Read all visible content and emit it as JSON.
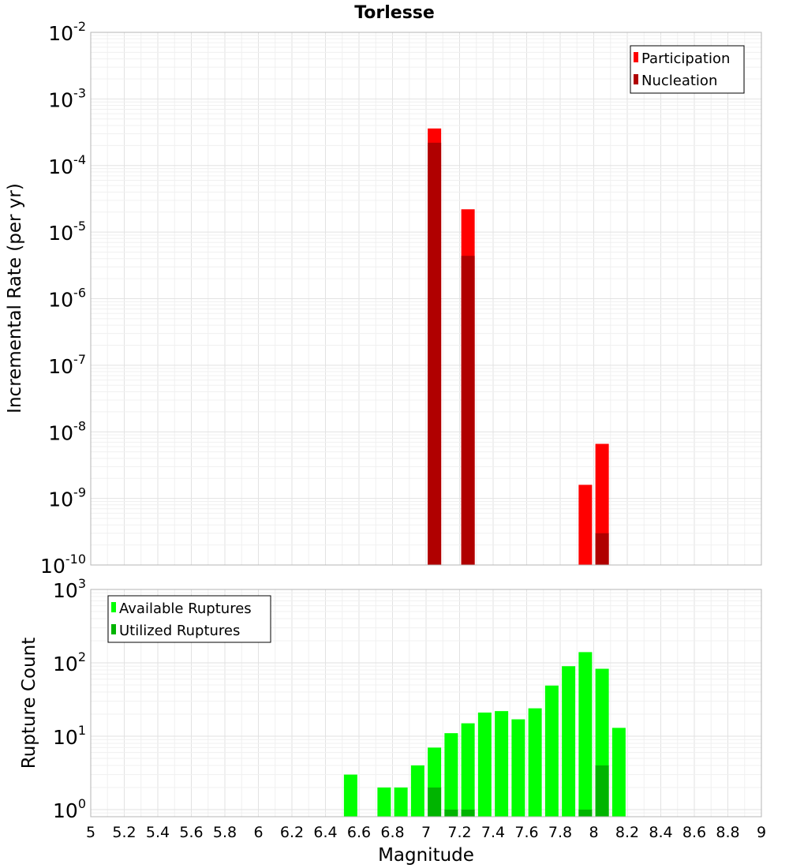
{
  "chart_data": [
    {
      "type": "bar",
      "title": "Torlesse",
      "ylabel": "Incremental Rate (per yr)",
      "xlabel": "",
      "x_scale": "linear",
      "y_scale": "log",
      "xlim": [
        5,
        9
      ],
      "ylim": [
        1e-10,
        0.01
      ],
      "grid": true,
      "legend_position": "top-right",
      "y_tick_exponents": [
        "-2",
        "-3",
        "-4",
        "-5",
        "-6",
        "-7",
        "-8",
        "-9",
        "-10"
      ],
      "y_tick_base": "10",
      "series": [
        {
          "name": "Participation",
          "color": "#ff0000",
          "x": [
            7.05,
            7.25,
            7.95,
            8.05
          ],
          "values": [
            0.00036,
            2.2e-05,
            1.6e-09,
            6.6e-09
          ]
        },
        {
          "name": "Nucleation",
          "color": "#b00000",
          "x": [
            7.05,
            7.25,
            8.05
          ],
          "values": [
            0.00022,
            4.4e-06,
            3e-10
          ]
        }
      ]
    },
    {
      "type": "bar",
      "title": "",
      "ylabel": "Rupture Count",
      "xlabel": "Magnitude",
      "x_scale": "linear",
      "y_scale": "log",
      "xlim": [
        5,
        9
      ],
      "ylim": [
        0.8,
        1000
      ],
      "grid": true,
      "legend_position": "top-left",
      "y_tick_exponents": [
        "3",
        "2",
        "1",
        "0"
      ],
      "y_tick_base": "10",
      "x_ticks": [
        "5",
        "5.2",
        "5.4",
        "5.6",
        "5.8",
        "6",
        "6.2",
        "6.4",
        "6.6",
        "6.8",
        "7",
        "7.2",
        "7.4",
        "7.6",
        "7.8",
        "8",
        "8.2",
        "8.4",
        "8.6",
        "8.8",
        "9"
      ],
      "series": [
        {
          "name": "Available Ruptures",
          "color": "#00ff00",
          "x": [
            6.55,
            6.75,
            6.85,
            6.95,
            7.05,
            7.15,
            7.25,
            7.35,
            7.45,
            7.55,
            7.65,
            7.75,
            7.85,
            7.95,
            8.05,
            8.15
          ],
          "values": [
            3,
            2,
            2,
            4,
            7,
            11,
            15,
            21,
            22,
            17,
            24,
            49,
            90,
            140,
            83,
            13
          ]
        },
        {
          "name": "Utilized Ruptures",
          "color": "#00b400",
          "x": [
            7.05,
            7.15,
            7.25,
            7.95,
            8.05
          ],
          "values": [
            2,
            1,
            1,
            1,
            4
          ]
        }
      ]
    }
  ]
}
